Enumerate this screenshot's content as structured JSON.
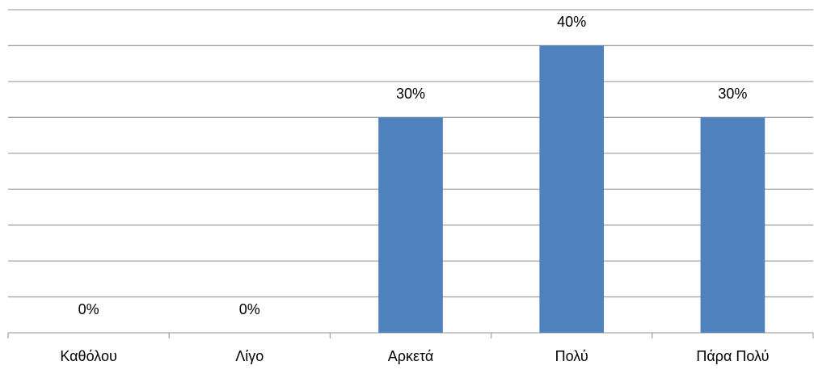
{
  "chart_data": {
    "type": "bar",
    "categories": [
      "Καθόλου",
      "Λίγο",
      "Αρκετά",
      "Πολύ",
      "Πάρα Πολύ"
    ],
    "values": [
      0,
      0,
      30,
      40,
      30
    ],
    "value_labels": [
      "0%",
      "0%",
      "30%",
      "40%",
      "30%"
    ],
    "color": "#4f81bd",
    "ylim": [
      0,
      45
    ],
    "yticks": [
      0,
      5,
      10,
      15,
      20,
      25,
      30,
      35,
      40,
      45
    ],
    "grid": true
  }
}
